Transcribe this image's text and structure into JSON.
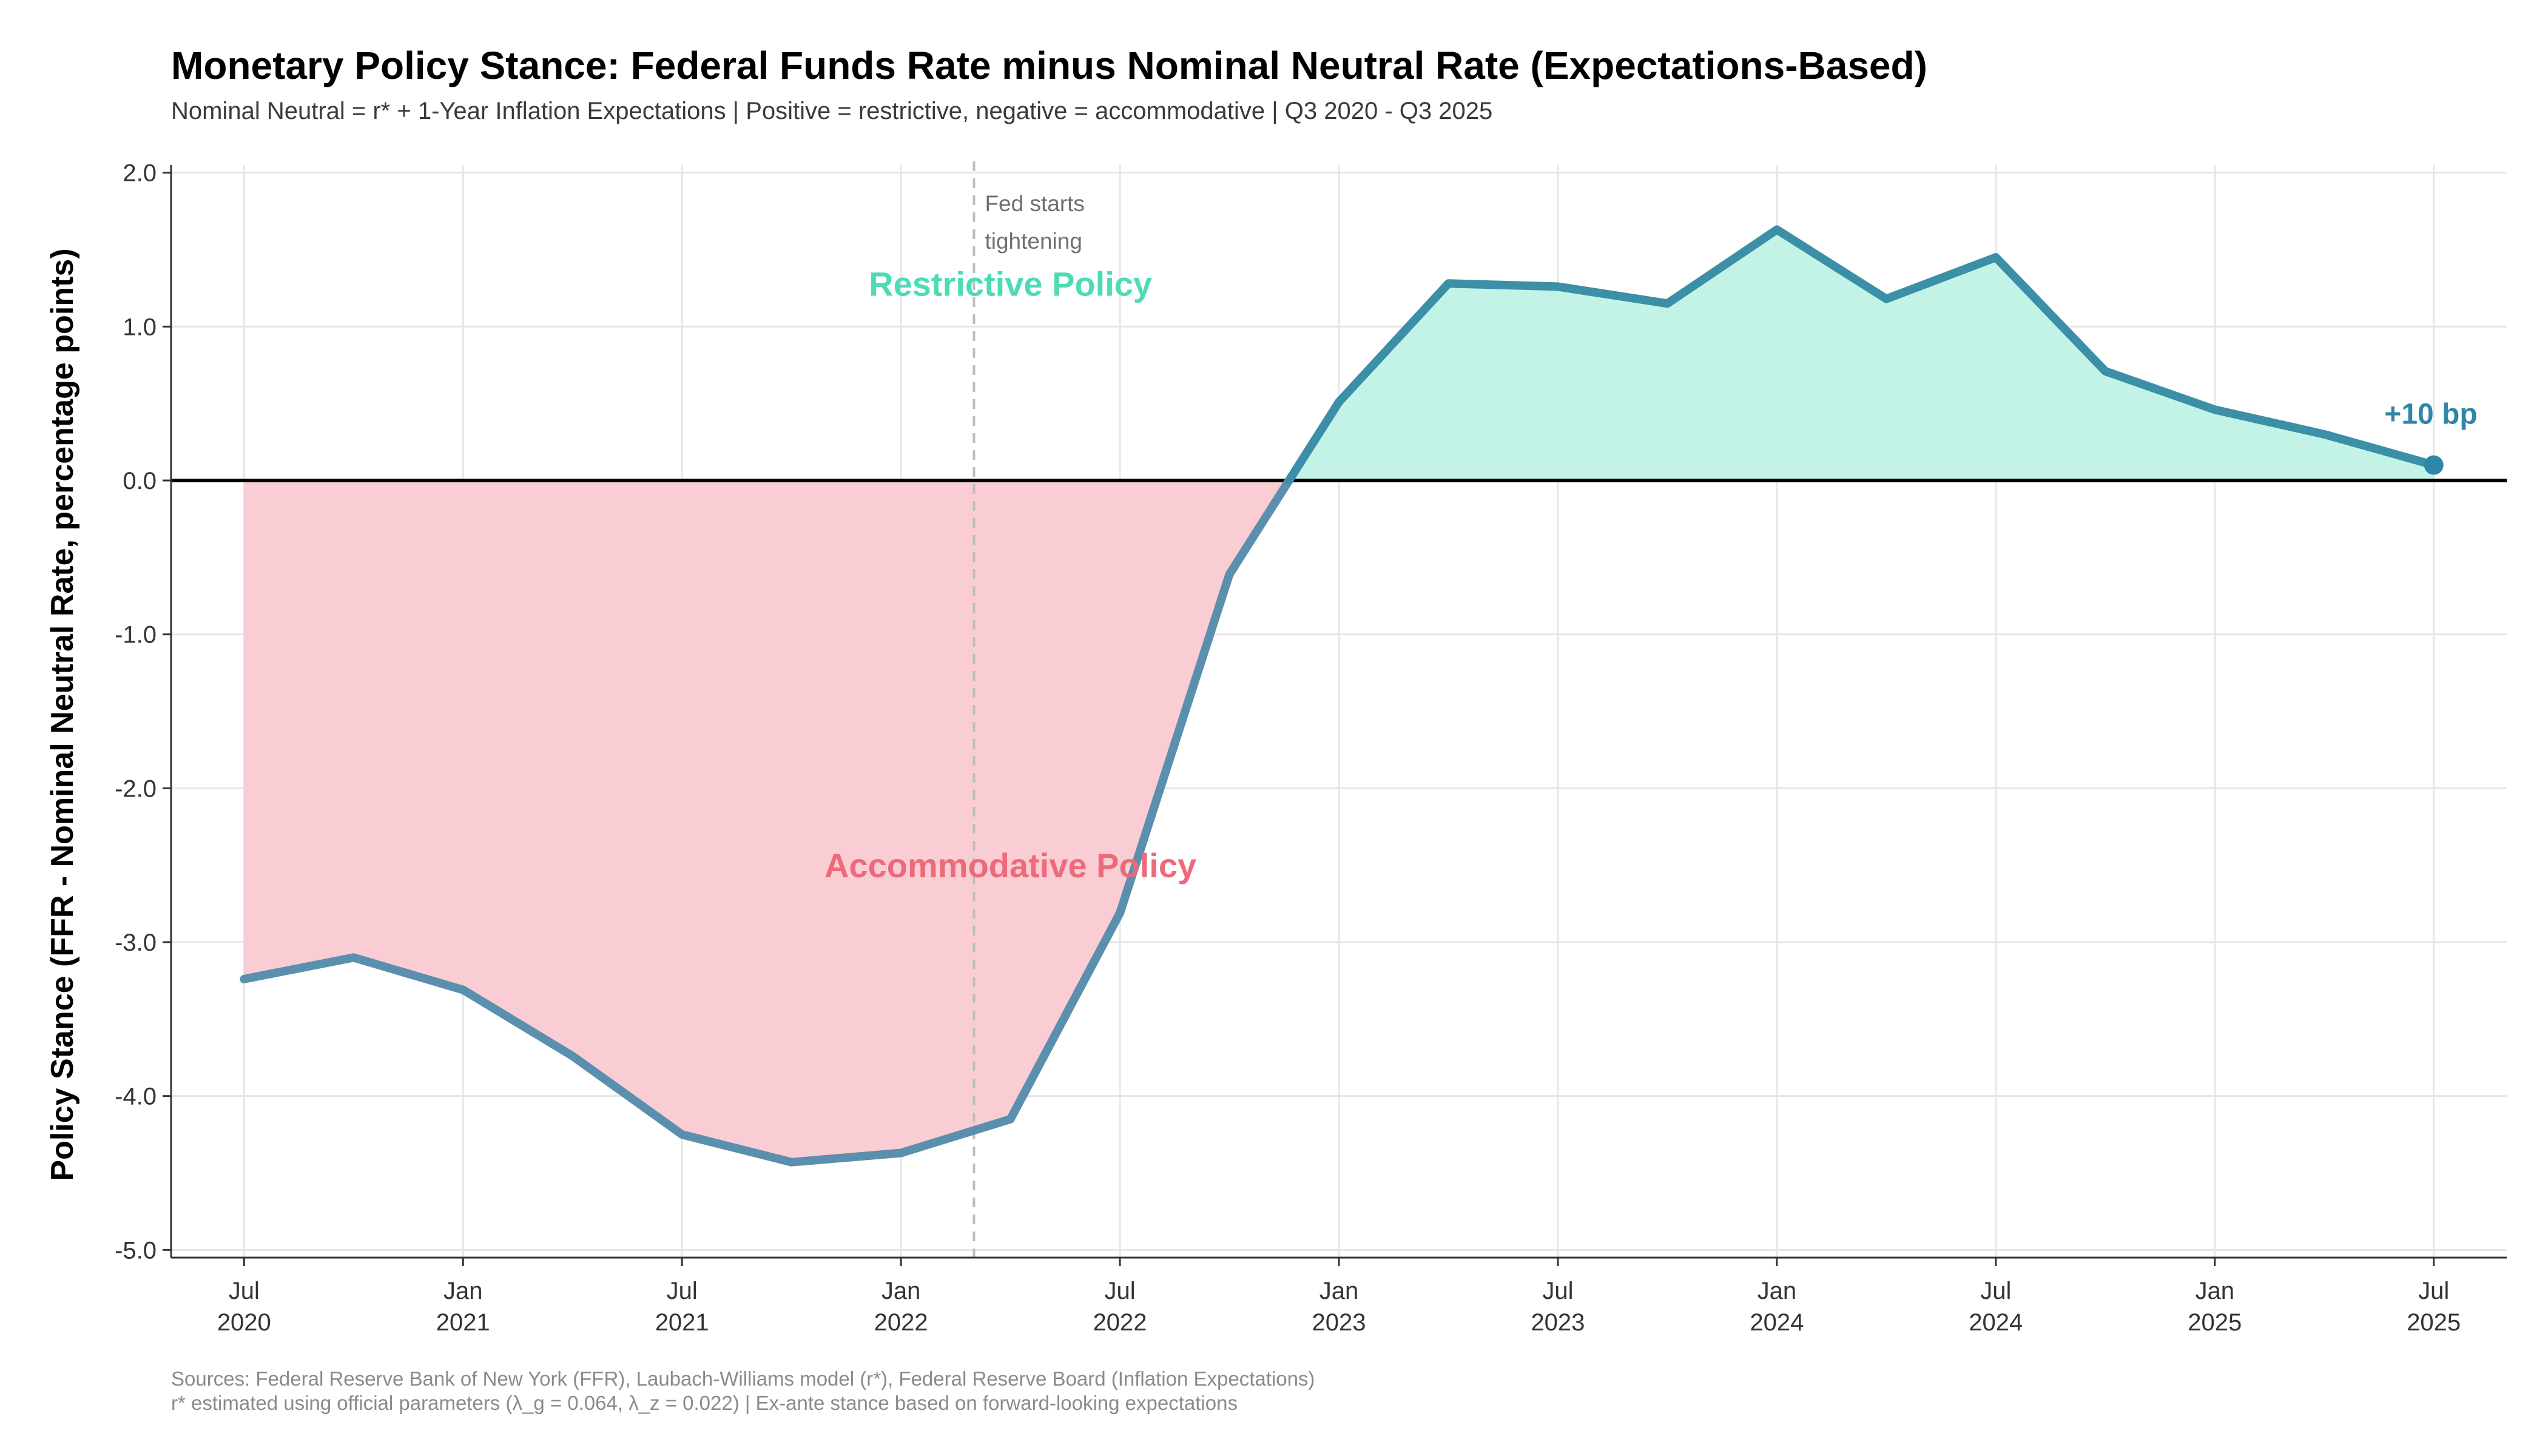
{
  "chart_data": {
    "type": "line",
    "title": "Monetary Policy Stance: Federal Funds Rate minus Nominal Neutral Rate (Expectations-Based)",
    "subtitle": "Nominal Neutral = r* + 1-Year Inflation Expectations | Positive = restrictive, negative = accommodative | Q3 2020 - Q3 2025",
    "ylabel": "Policy Stance (FFR - Nominal Neutral Rate, percentage points)",
    "xlabel": "",
    "ylim": [
      -5.05,
      2.05
    ],
    "yticks": [
      2.0,
      1.0,
      0.0,
      -1.0,
      -2.0,
      -3.0,
      -4.0,
      -5.0
    ],
    "ytick_labels": [
      "2.0",
      "1.0",
      "0.0",
      "-1.0",
      "-2.0",
      "-3.0",
      "-4.0",
      "-5.0"
    ],
    "xticks": [
      {
        "x": "2020-07",
        "month": "Jul",
        "year": "2020"
      },
      {
        "x": "2021-01",
        "month": "Jan",
        "year": "2021"
      },
      {
        "x": "2021-07",
        "month": "Jul",
        "year": "2021"
      },
      {
        "x": "2022-01",
        "month": "Jan",
        "year": "2022"
      },
      {
        "x": "2022-07",
        "month": "Jul",
        "year": "2022"
      },
      {
        "x": "2023-01",
        "month": "Jan",
        "year": "2023"
      },
      {
        "x": "2023-07",
        "month": "Jul",
        "year": "2023"
      },
      {
        "x": "2024-01",
        "month": "Jan",
        "year": "2024"
      },
      {
        "x": "2024-07",
        "month": "Jul",
        "year": "2024"
      },
      {
        "x": "2025-01",
        "month": "Jan",
        "year": "2025"
      },
      {
        "x": "2025-07",
        "month": "Jul",
        "year": "2025"
      }
    ],
    "x_range": [
      "2020-05",
      "2025-09"
    ],
    "grid": true,
    "series": [
      {
        "x": [
          "2020-07",
          "2020-10",
          "2021-01",
          "2021-04",
          "2021-07",
          "2021-10",
          "2022-01",
          "2022-04",
          "2022-07",
          "2022-10",
          "2023-01",
          "2023-04",
          "2023-07",
          "2023-10",
          "2024-01",
          "2024-04",
          "2024-07",
          "2024-10",
          "2025-01",
          "2025-04",
          "2025-07"
        ],
        "values": [
          -3.24,
          -3.1,
          -3.31,
          -3.74,
          -4.25,
          -4.43,
          -4.37,
          -4.15,
          -2.81,
          -0.61,
          0.51,
          1.28,
          1.26,
          1.15,
          1.63,
          1.18,
          1.45,
          0.71,
          0.46,
          0.3,
          0.1
        ]
      }
    ],
    "reference_line": {
      "y": 0.0
    },
    "event_line": {
      "x": "2022-03",
      "label_lines": [
        "Fed starts",
        "tightening"
      ]
    },
    "annotations": {
      "restrictive": {
        "text": "Restrictive Policy",
        "x": "2022-04",
        "y": 1.28
      },
      "accommodative": {
        "text": "Accommodative Policy",
        "x": "2022-04",
        "y": -2.5
      },
      "end_point": {
        "text": "+10 bp",
        "x": "2025-07",
        "y": 0.1
      }
    },
    "caption_lines": [
      "Sources: Federal Reserve Bank of New York (FFR), Laubach-Williams model (r*), Federal Reserve Board (Inflation Expectations)",
      "r* estimated using official parameters (λ_g = 0.064, λ_z = 0.022) | Ex-ante stance based on forward-looking expectations"
    ]
  },
  "colors": {
    "line": "#3b8fa7",
    "line_negative": "#5b8fae",
    "restrictive_fill": "#c3f3e6",
    "accommodative_fill": "#f9cdd3",
    "restrictive_text": "#4ddbb6",
    "accommodative_text": "#ec6a7a",
    "end_label": "#2f86a6",
    "grid": "#e6e6e6",
    "zero_line": "#000000",
    "event_line": "#bdbdbd"
  }
}
